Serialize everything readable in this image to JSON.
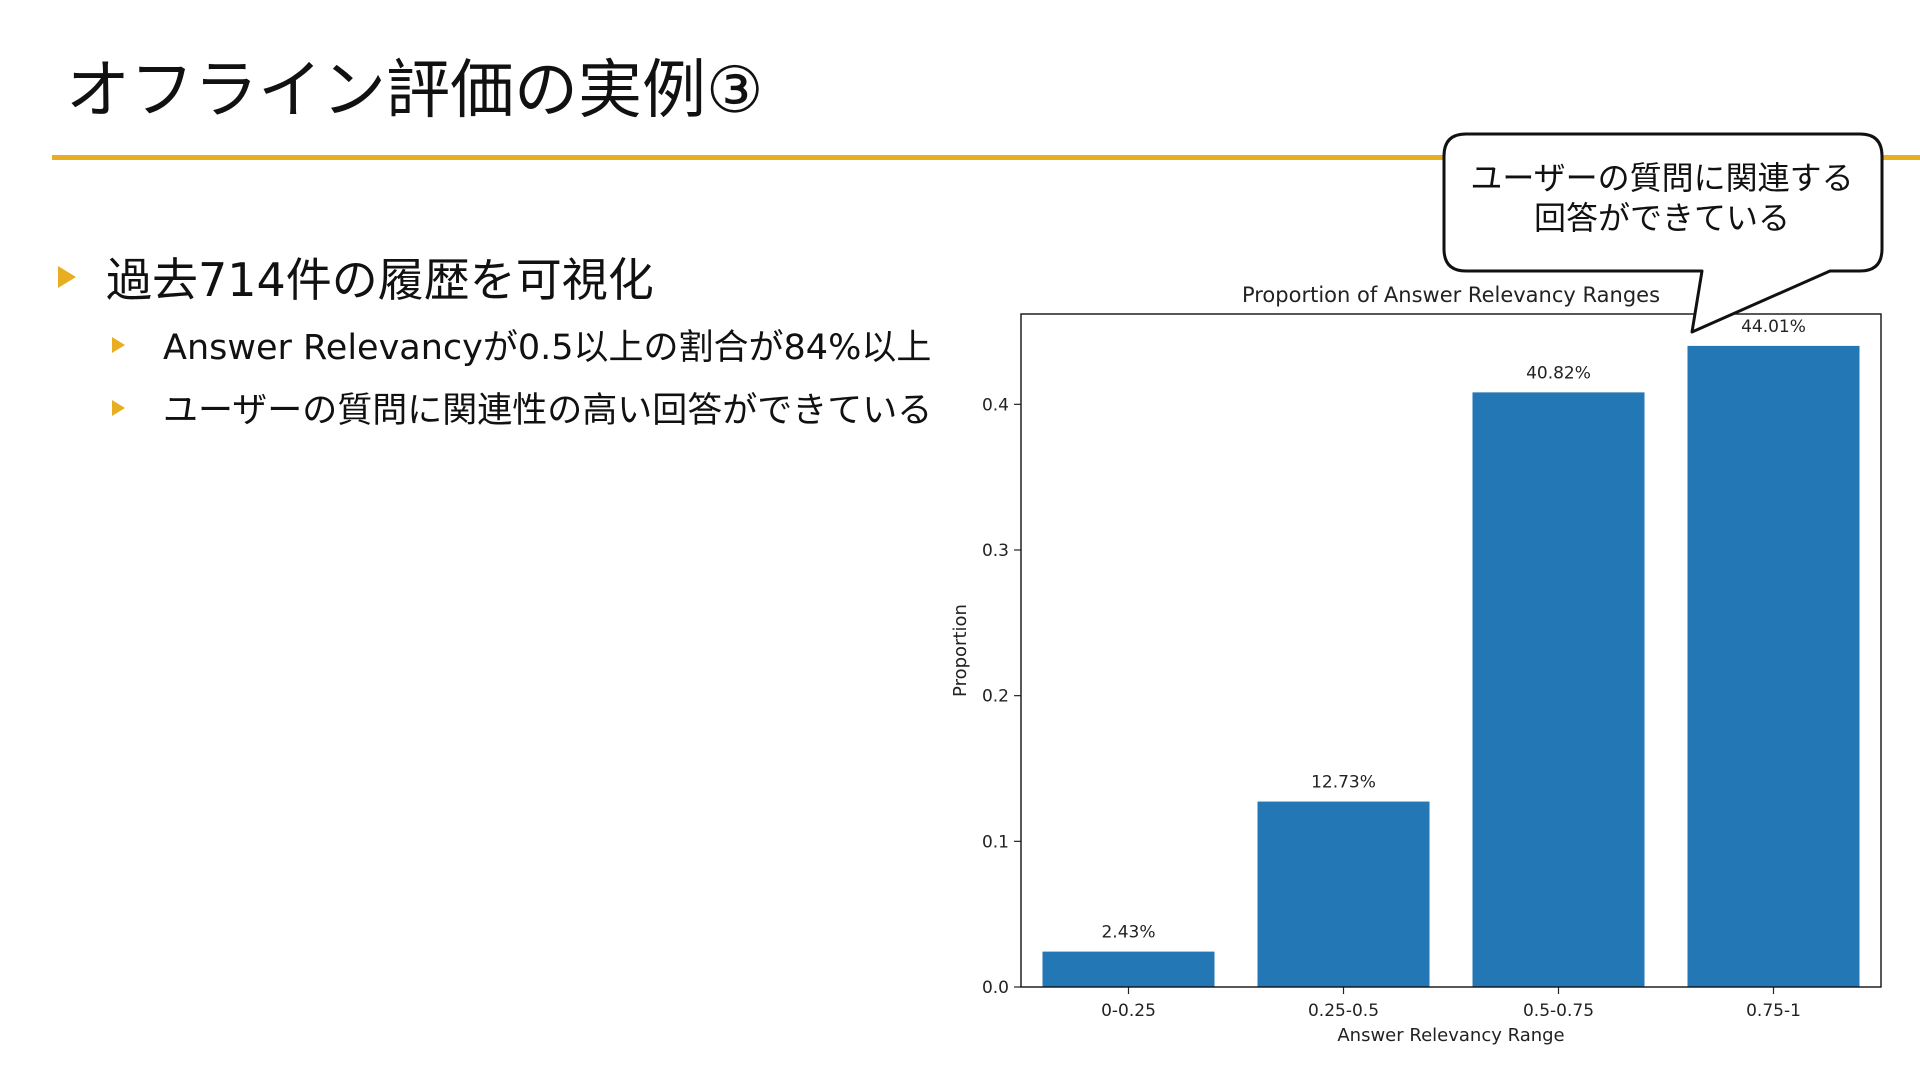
{
  "slide": {
    "title": "オフライン評価の実例③",
    "bullet_main": "過去714件の履歴を可視化",
    "bullet_sub_1": "Answer Relevancyが0.5以上の割合が84%以上",
    "bullet_sub_2": "ユーザーの質問に関連性の高い回答ができている",
    "callout_line_1": "ユーザーの質問に関連する",
    "callout_line_2": "回答ができている"
  },
  "colors": {
    "accent": "#e8ae22",
    "bar": "#2277b4"
  },
  "chart_data": {
    "type": "bar",
    "title": "Proportion of Answer Relevancy Ranges",
    "xlabel": "Answer Relevancy Range",
    "ylabel": "Proportion",
    "categories": [
      "0-0.25",
      "0.25-0.5",
      "0.5-0.75",
      "0.75-1"
    ],
    "values": [
      0.0243,
      0.1273,
      0.4082,
      0.4401
    ],
    "data_labels": [
      "2.43%",
      "12.73%",
      "40.82%",
      "44.01%"
    ],
    "yticks": [
      0.0,
      0.1,
      0.2,
      0.3,
      0.4
    ],
    "ytick_labels": [
      "0.0",
      "0.1",
      "0.2",
      "0.3",
      "0.4"
    ],
    "ylim": [
      0,
      0.462
    ],
    "grid": false,
    "legend": "none"
  }
}
